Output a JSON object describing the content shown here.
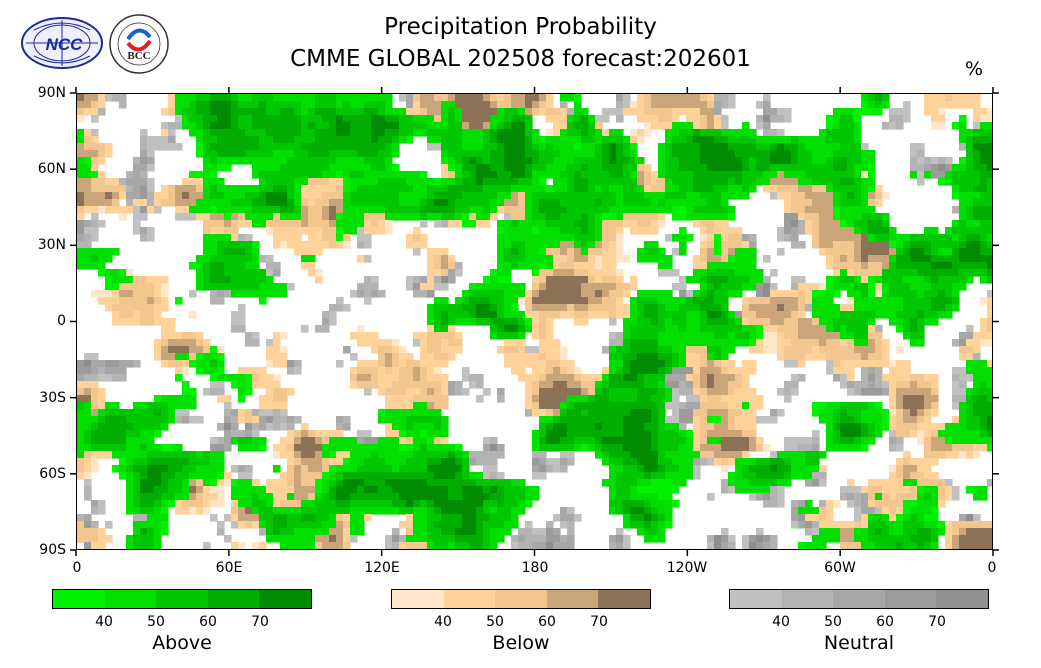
{
  "title": {
    "line1": "Precipitation Probability",
    "line2": "CMME GLOBAL 202508 forecast:202601"
  },
  "unit": "%",
  "logos": {
    "ncc_text": "NCC",
    "bcc_text": "BCC"
  },
  "y_axis_labels": [
    "90N",
    "60N",
    "30N",
    "0",
    "30S",
    "60S",
    "90S"
  ],
  "x_axis_labels": [
    "0",
    "60E",
    "120E",
    "180",
    "120W",
    "60W",
    "0"
  ],
  "legends": [
    {
      "name": "Above",
      "colors": [
        "#00f200",
        "#00df00",
        "#00c700",
        "#00ae00",
        "#008c00"
      ],
      "ticks": [
        "40",
        "50",
        "60",
        "70"
      ]
    },
    {
      "name": "Below",
      "colors": [
        "#ffe6c8",
        "#ffd29a",
        "#f3c58f",
        "#cba57a",
        "#8c7256"
      ],
      "ticks": [
        "40",
        "50",
        "60",
        "70"
      ]
    },
    {
      "name": "Neutral",
      "colors": [
        "#c0c0c0",
        "#b3b3b3",
        "#a7a7a7",
        "#9b9b9b",
        "#8f8f8f"
      ],
      "ticks": [
        "40",
        "50",
        "60",
        "70"
      ]
    }
  ]
}
